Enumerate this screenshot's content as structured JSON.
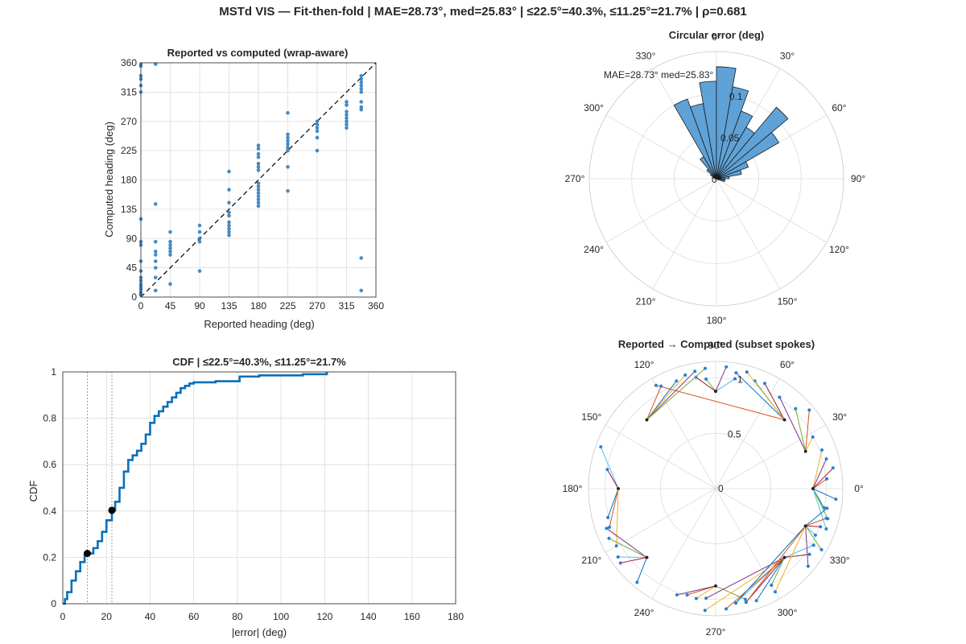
{
  "figure": {
    "title": "MSTd VIS — Fit-then-fold  |  MAE=28.73°, med=25.83° | ≤22.5°=40.3%, ≤11.25°=21.7% | ρ=0.681"
  },
  "colors": {
    "scatter": "#2878b8",
    "cdf": "#0b6fb8",
    "rose_fill": "#5fa2d8",
    "rose_edge": "#1a1a1a",
    "grid": "#dcdcdc",
    "axis": "#262626"
  },
  "chart_data": [
    {
      "id": "scatter",
      "type": "scatter",
      "title": "Reported vs computed (wrap-aware)",
      "xlabel": "Reported heading (deg)",
      "ylabel": "Computed heading (deg)",
      "xlim": [
        0,
        360
      ],
      "ylim": [
        0,
        360
      ],
      "xticks": [
        0,
        45,
        90,
        135,
        180,
        225,
        270,
        315,
        360
      ],
      "yticks": [
        0,
        45,
        90,
        135,
        180,
        225,
        270,
        315,
        360
      ],
      "grid": true,
      "reference_line": "identity (dashed)",
      "points": [
        [
          0,
          3
        ],
        [
          0,
          5
        ],
        [
          0,
          8
        ],
        [
          0,
          12
        ],
        [
          0,
          16
        ],
        [
          0,
          20
        ],
        [
          0,
          25
        ],
        [
          0,
          30
        ],
        [
          0,
          40
        ],
        [
          0,
          55
        ],
        [
          0,
          80
        ],
        [
          0,
          85
        ],
        [
          0,
          120
        ],
        [
          0,
          315
        ],
        [
          0,
          325
        ],
        [
          0,
          335
        ],
        [
          0,
          340
        ],
        [
          0,
          355
        ],
        [
          0,
          358
        ],
        [
          22.5,
          10
        ],
        [
          22.5,
          30
        ],
        [
          22.5,
          45
        ],
        [
          22.5,
          55
        ],
        [
          22.5,
          65
        ],
        [
          22.5,
          70
        ],
        [
          22.5,
          85
        ],
        [
          22.5,
          143
        ],
        [
          22.5,
          358
        ],
        [
          45,
          20
        ],
        [
          45,
          65
        ],
        [
          45,
          70
        ],
        [
          45,
          75
        ],
        [
          45,
          80
        ],
        [
          45,
          85
        ],
        [
          45,
          100
        ],
        [
          90,
          40
        ],
        [
          90,
          85
        ],
        [
          90,
          90
        ],
        [
          90,
          100
        ],
        [
          90,
          110
        ],
        [
          135,
          95
        ],
        [
          135,
          100
        ],
        [
          135,
          105
        ],
        [
          135,
          110
        ],
        [
          135,
          115
        ],
        [
          135,
          125
        ],
        [
          135,
          130
        ],
        [
          135,
          145
        ],
        [
          135,
          165
        ],
        [
          135,
          193
        ],
        [
          180,
          140
        ],
        [
          180,
          145
        ],
        [
          180,
          150
        ],
        [
          180,
          155
        ],
        [
          180,
          160
        ],
        [
          180,
          165
        ],
        [
          180,
          170
        ],
        [
          180,
          175
        ],
        [
          180,
          195
        ],
        [
          180,
          200
        ],
        [
          180,
          205
        ],
        [
          180,
          215
        ],
        [
          180,
          220
        ],
        [
          180,
          228
        ],
        [
          180,
          233
        ],
        [
          225,
          163
        ],
        [
          225,
          200
        ],
        [
          225,
          225
        ],
        [
          225,
          230
        ],
        [
          225,
          235
        ],
        [
          225,
          240
        ],
        [
          225,
          245
        ],
        [
          225,
          250
        ],
        [
          225,
          283
        ],
        [
          270,
          225
        ],
        [
          270,
          245
        ],
        [
          270,
          255
        ],
        [
          270,
          260
        ],
        [
          270,
          265
        ],
        [
          270,
          270
        ],
        [
          315,
          260
        ],
        [
          315,
          265
        ],
        [
          315,
          270
        ],
        [
          315,
          275
        ],
        [
          315,
          280
        ],
        [
          315,
          285
        ],
        [
          315,
          295
        ],
        [
          315,
          300
        ],
        [
          337.5,
          10
        ],
        [
          337.5,
          60
        ],
        [
          337.5,
          288
        ],
        [
          337.5,
          292
        ],
        [
          337.5,
          300
        ],
        [
          337.5,
          315
        ],
        [
          337.5,
          320
        ],
        [
          337.5,
          325
        ],
        [
          337.5,
          330
        ],
        [
          337.5,
          335
        ],
        [
          337.5,
          340
        ]
      ]
    },
    {
      "id": "rose",
      "type": "polar-histogram",
      "title": "Circular error (deg)",
      "angle_ticks": [
        "0°",
        "30°",
        "60°",
        "90°",
        "120°",
        "150°",
        "180°",
        "210°",
        "240°",
        "270°",
        "300°",
        "330°"
      ],
      "r_ticks": [
        "0",
        "0.05",
        "0.1"
      ],
      "rmax": 0.15,
      "annotation": "MAE=28.73°   med=25.83°",
      "bins_deg": [
        -85,
        -75,
        -65,
        -55,
        -45,
        -35,
        -25,
        -15,
        -5,
        5,
        15,
        25,
        35,
        45,
        55,
        65,
        75,
        85,
        95,
        105,
        115
      ],
      "values": [
        0.002,
        0.003,
        0.005,
        0.008,
        0.015,
        0.03,
        0.1,
        0.09,
        0.115,
        0.132,
        0.11,
        0.085,
        0.07,
        0.11,
        0.085,
        0.04,
        0.03,
        0.015,
        0.01,
        0.01,
        0.003
      ]
    },
    {
      "id": "cdf",
      "type": "line",
      "title": "CDF  |  ≤22.5°=40.3%, ≤11.25°=21.7%",
      "xlabel": "|error| (deg)",
      "ylabel": "CDF",
      "xlim": [
        0,
        180
      ],
      "ylim": [
        0,
        1
      ],
      "xticks": [
        0,
        20,
        40,
        60,
        80,
        100,
        120,
        140,
        160,
        180
      ],
      "yticks": [
        0,
        0.2,
        0.4,
        0.6,
        0.8,
        1
      ],
      "grid": true,
      "thresholds": [
        11.25,
        22.5
      ],
      "markers": [
        [
          11.25,
          0.217
        ],
        [
          22.5,
          0.403
        ]
      ],
      "x": [
        0,
        1,
        2,
        4,
        6,
        8,
        10,
        11.25,
        14,
        16,
        18,
        20,
        22.5,
        24,
        26,
        28,
        30,
        32,
        34,
        36,
        38,
        40,
        42,
        44,
        46,
        48,
        50,
        52,
        54,
        56,
        58,
        60,
        70,
        80,
        81,
        90,
        110,
        121
      ],
      "y": [
        0,
        0.02,
        0.05,
        0.1,
        0.14,
        0.18,
        0.21,
        0.217,
        0.24,
        0.27,
        0.31,
        0.36,
        0.403,
        0.44,
        0.5,
        0.57,
        0.62,
        0.64,
        0.66,
        0.69,
        0.73,
        0.78,
        0.81,
        0.83,
        0.85,
        0.87,
        0.89,
        0.91,
        0.93,
        0.94,
        0.95,
        0.955,
        0.96,
        0.96,
        0.98,
        0.985,
        0.99,
        1.0
      ]
    },
    {
      "id": "spokes",
      "type": "polar-spokes",
      "title": "Reported → Computed (subset spokes)",
      "angle_ticks": [
        "0°",
        "30°",
        "60°",
        "90°",
        "120°",
        "150°",
        "180°",
        "210°",
        "240°",
        "270°",
        "300°",
        "330°"
      ],
      "r_ticks": [
        "0",
        "0.5",
        "1"
      ],
      "rmax": 1.15,
      "inner_radius": 0.88,
      "outer_radius": 1.05,
      "spokes": [
        [
          0,
          350
        ],
        [
          0,
          5
        ],
        [
          0,
          20
        ],
        [
          0,
          15
        ],
        [
          0,
          345
        ],
        [
          0,
          340
        ],
        [
          0,
          10
        ],
        [
          0,
          355
        ],
        [
          22.5,
          40
        ],
        [
          22.5,
          28
        ],
        [
          22.5,
          55
        ],
        [
          22.5,
          45
        ],
        [
          45,
          70
        ],
        [
          45,
          65
        ],
        [
          45,
          80
        ],
        [
          45,
          120
        ],
        [
          45,
          75
        ],
        [
          90,
          85
        ],
        [
          90,
          95
        ],
        [
          90,
          80
        ],
        [
          90,
          100
        ],
        [
          135,
          110
        ],
        [
          135,
          118
        ],
        [
          135,
          105
        ],
        [
          135,
          100
        ],
        [
          135,
          95
        ],
        [
          180,
          160
        ],
        [
          180,
          170
        ],
        [
          180,
          195
        ],
        [
          180,
          200
        ],
        [
          180,
          210
        ],
        [
          225,
          200
        ],
        [
          225,
          205
        ],
        [
          225,
          215
        ],
        [
          225,
          218
        ],
        [
          225,
          230
        ],
        [
          270,
          255
        ],
        [
          270,
          260
        ],
        [
          270,
          250
        ],
        [
          270,
          285
        ],
        [
          315,
          280
        ],
        [
          315,
          285
        ],
        [
          315,
          290
        ],
        [
          315,
          275
        ],
        [
          315,
          265
        ],
        [
          315,
          265
        ],
        [
          315,
          300
        ],
        [
          315,
          330
        ],
        [
          315,
          325
        ],
        [
          337.5,
          280
        ],
        [
          337.5,
          285
        ],
        [
          337.5,
          300
        ],
        [
          337.5,
          320
        ],
        [
          337.5,
          330
        ],
        [
          337.5,
          335
        ],
        [
          337.5,
          340
        ],
        [
          337.5,
          350
        ],
        [
          337.5,
          345
        ]
      ]
    }
  ]
}
